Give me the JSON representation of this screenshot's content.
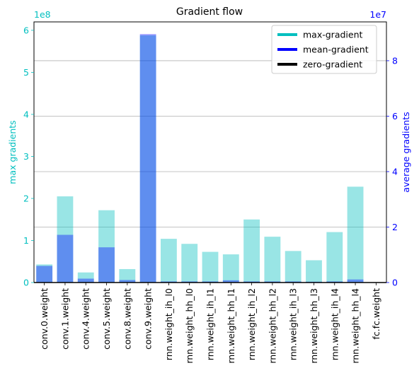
{
  "chart_data": {
    "type": "bar",
    "title": "Gradient flow",
    "categories": [
      "conv.0.weight",
      "conv.1.weight",
      "conv.4.weight",
      "conv.5.weight",
      "conv.8.weight",
      "conv.9.weight",
      "rnn.weight_ih_l0",
      "rnn.weight_hh_l0",
      "rnn.weight_ih_l1",
      "rnn.weight_hh_l1",
      "rnn.weight_ih_l2",
      "rnn.weight_hh_l2",
      "rnn.weight_ih_l3",
      "rnn.weight_hh_l3",
      "rnn.weight_ih_l4",
      "rnn.weight_hh_l4",
      "fc.fc.weight"
    ],
    "left_axis": {
      "label": "max gradients",
      "exponent_label": "1e8",
      "scale": 100000000,
      "ylim": [
        0,
        620000000
      ],
      "ticks": [
        0,
        100000000,
        200000000,
        300000000,
        400000000,
        500000000,
        600000000
      ],
      "tick_labels": [
        "0",
        "1",
        "2",
        "3",
        "4",
        "5",
        "6"
      ],
      "color": "#00bfbf"
    },
    "right_axis": {
      "label": "average gradients",
      "exponent_label": "1e7",
      "scale": 10000000,
      "ylim": [
        0,
        94000000
      ],
      "ticks": [
        0,
        20000000,
        40000000,
        60000000,
        80000000
      ],
      "tick_labels": [
        "0",
        "2",
        "4",
        "6",
        "8"
      ],
      "color": "#0000ff"
    },
    "series": [
      {
        "name": "max-gradient",
        "axis": "left",
        "color": "#00bfbf",
        "values": [
          43000000,
          205000000,
          24000000,
          172000000,
          32000000,
          588000000,
          104000000,
          92000000,
          73000000,
          67000000,
          150000000,
          109000000,
          75000000,
          53000000,
          120000000,
          228000000,
          0
        ]
      },
      {
        "name": "mean-gradient",
        "axis": "right",
        "color": "#0000ff",
        "values": [
          6000000,
          17200000,
          1400000,
          12700000,
          900000,
          89600000,
          400000,
          400000,
          400000,
          800000,
          400000,
          400000,
          400000,
          300000,
          400000,
          1100000,
          0
        ]
      }
    ],
    "legend": {
      "position": "top-right",
      "entries": [
        {
          "label": "max-gradient",
          "color": "#00bfbf"
        },
        {
          "label": "mean-gradient",
          "color": "#0000ff"
        },
        {
          "label": "zero-gradient",
          "color": "#000000"
        }
      ]
    },
    "zero_line_color": "#000000",
    "grid": {
      "horizontal": true,
      "axis": "right"
    }
  }
}
